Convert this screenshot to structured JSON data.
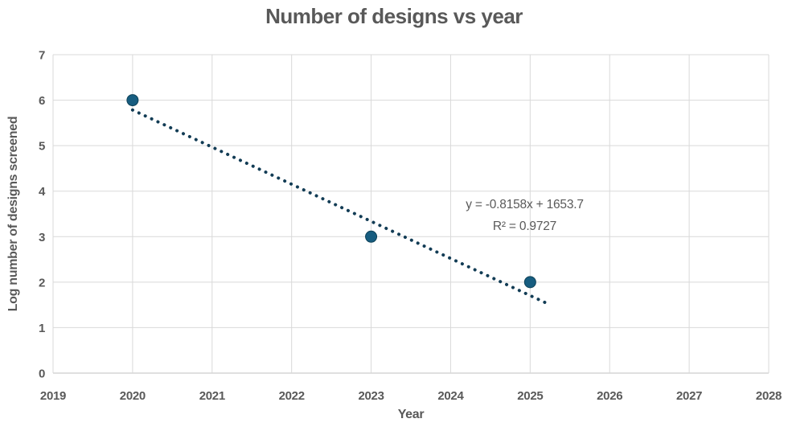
{
  "chart_data": {
    "type": "scatter",
    "title": "Number of designs vs year",
    "xlabel": "Year",
    "ylabel": "Log number of designs screened",
    "points": [
      {
        "x": 2020,
        "y": 6
      },
      {
        "x": 2023,
        "y": 3
      },
      {
        "x": 2025,
        "y": 2
      }
    ],
    "xlim": [
      2019,
      2028
    ],
    "ylim": [
      0,
      7
    ],
    "x_ticks": [
      2019,
      2020,
      2021,
      2022,
      2023,
      2024,
      2025,
      2026,
      2027,
      2028
    ],
    "y_ticks": [
      0,
      1,
      2,
      3,
      4,
      5,
      6,
      7
    ],
    "grid": true,
    "legend": "none",
    "trendline": {
      "style": "dotted",
      "slope": -0.8158,
      "intercept": 1653.7,
      "r_squared": 0.9727,
      "x_start": 2020,
      "x_end": 2025.2,
      "equation_label": "y = -0.8158x + 1653.7",
      "r_squared_label": "R² = 0.9727"
    },
    "colors": {
      "marker": "#175d80",
      "marker_edge": "#0e4258",
      "trendline": "#123c55",
      "gridline": "#d9d9d9",
      "axis_line": "#bfbfbf",
      "text": "#595959"
    }
  }
}
